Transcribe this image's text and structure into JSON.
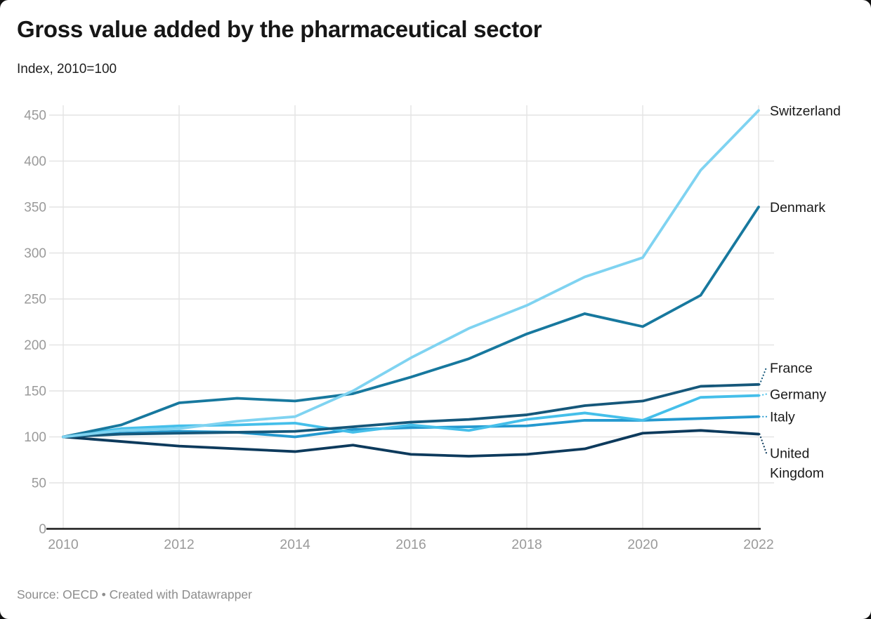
{
  "header": {
    "title": "Gross value added by the pharmaceutical sector",
    "subtitle": "Index, 2010=100"
  },
  "footer": {
    "text": "Source: OECD • Created with Datawrapper"
  },
  "chart_data": {
    "type": "line",
    "title": "Gross value added by the pharmaceutical sector",
    "subtitle": "Index, 2010=100",
    "xlabel": "",
    "ylabel": "Index, 2010=100",
    "x": [
      2010,
      2011,
      2012,
      2013,
      2014,
      2015,
      2016,
      2017,
      2018,
      2019,
      2020,
      2021,
      2022
    ],
    "x_tick_labels": [
      "2010",
      "2012",
      "2014",
      "2016",
      "2018",
      "2020",
      "2022"
    ],
    "y_ticks": [
      0,
      50,
      100,
      150,
      200,
      250,
      300,
      350,
      400,
      450
    ],
    "ylim": [
      0,
      460
    ],
    "xlim": [
      2010,
      2022
    ],
    "grid": "on",
    "legend_position": "direct-labels-right",
    "axis_color": "#1a1a1a",
    "grid_color": "#e4e4e4",
    "tick_label_color": "#9a9a9a",
    "series_label_color": "#1a1a1a",
    "series": [
      {
        "name": "Switzerland",
        "color": "#7fd3f1",
        "values": [
          100,
          107,
          109,
          117,
          122,
          150,
          186,
          218,
          243,
          274,
          295,
          390,
          455
        ],
        "label_dy": 0,
        "leader": false
      },
      {
        "name": "Denmark",
        "color": "#17789e",
        "values": [
          100,
          113,
          137,
          142,
          139,
          147,
          165,
          185,
          212,
          234,
          220,
          254,
          350
        ],
        "label_dy": 0,
        "leader": false
      },
      {
        "name": "France",
        "color": "#15577a",
        "values": [
          100,
          103,
          104,
          105,
          106,
          111,
          116,
          119,
          124,
          134,
          139,
          155,
          157
        ],
        "label_dy": -24,
        "leader": true
      },
      {
        "name": "Germany",
        "color": "#45bfea",
        "values": [
          100,
          109,
          112,
          113,
          115,
          105,
          113,
          107,
          119,
          126,
          118,
          143,
          145
        ],
        "label_dy": -2,
        "leader": true
      },
      {
        "name": "Italy",
        "color": "#2499cf",
        "values": [
          100,
          104,
          106,
          105,
          100,
          108,
          110,
          111,
          112,
          118,
          118,
          120,
          122
        ],
        "label_dy": 0,
        "leader": true
      },
      {
        "name": "United Kingdom",
        "color": "#0d3a5c",
        "values": [
          100,
          95,
          90,
          87,
          84,
          91,
          81,
          79,
          81,
          87,
          104,
          107,
          103
        ],
        "label_dy": 27,
        "label_lines": [
          "United",
          "Kingdom"
        ],
        "leader": true
      }
    ]
  }
}
